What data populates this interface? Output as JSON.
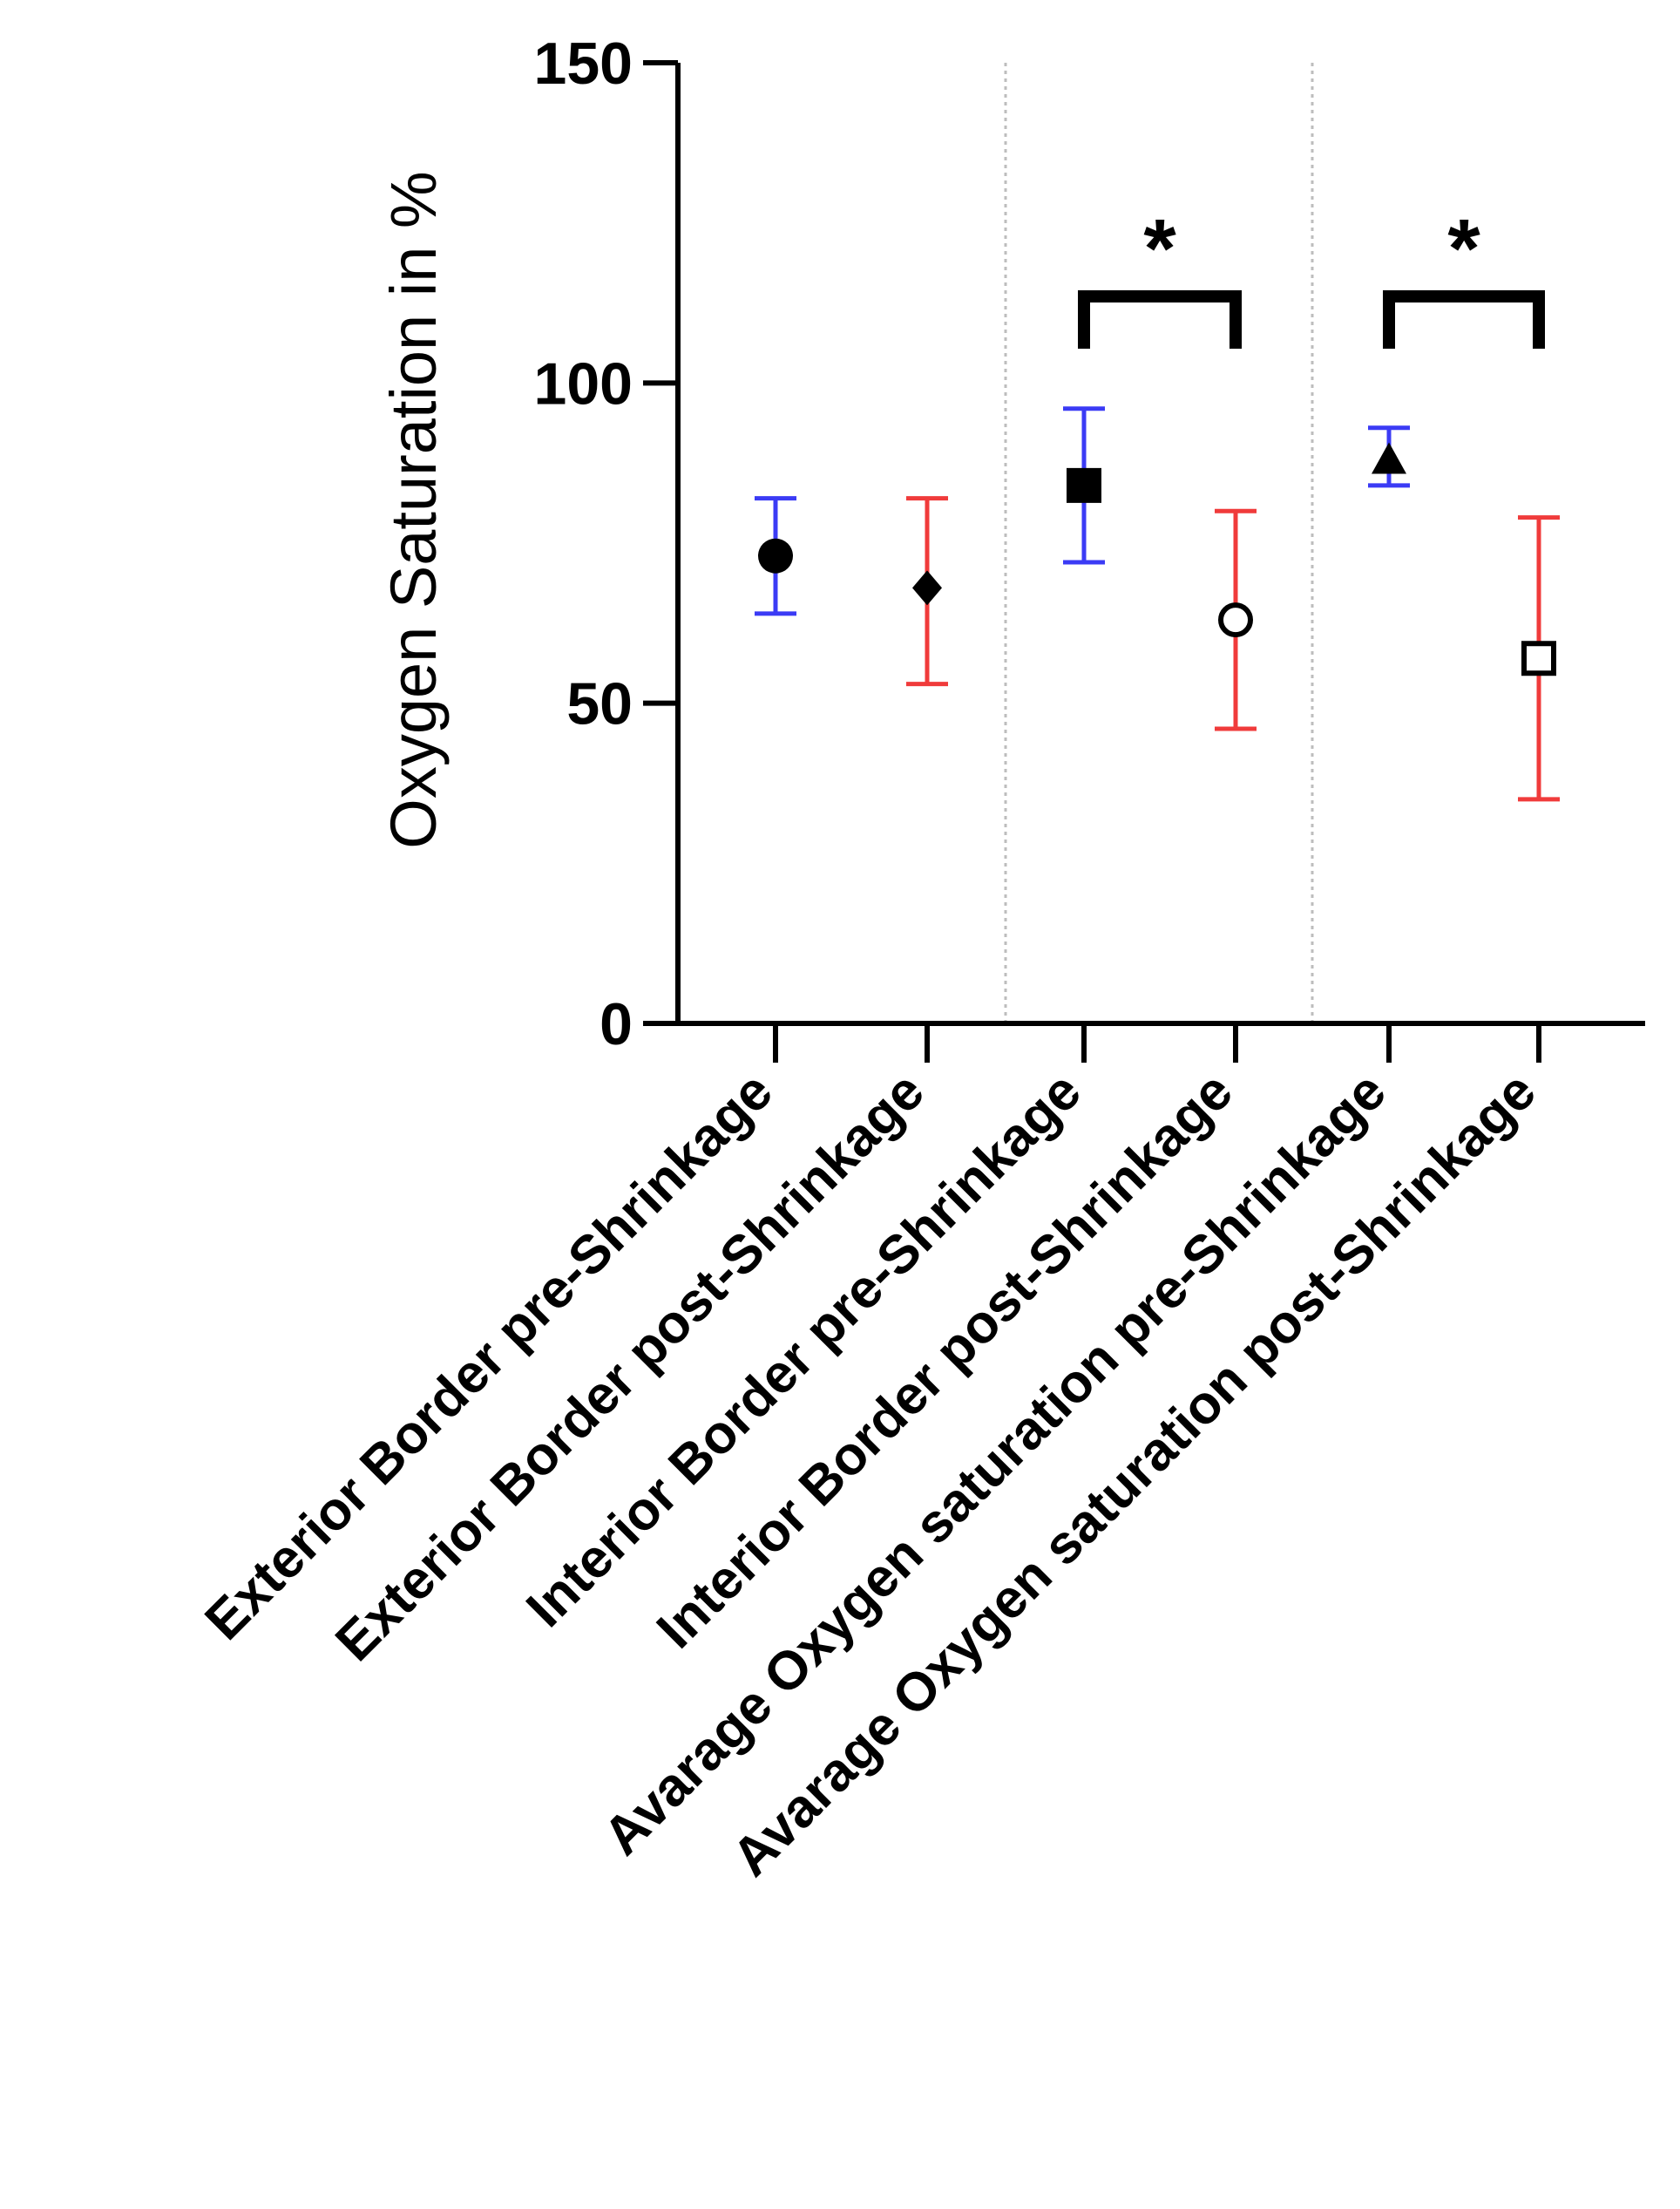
{
  "chart_data": {
    "type": "scatter",
    "title": "",
    "xlabel": "",
    "ylabel": "Oxygen Saturation in %",
    "ylim": [
      0,
      150
    ],
    "yticks": [
      0,
      50,
      100,
      150
    ],
    "grid": false,
    "legend": "none",
    "colors": {
      "axis": "#000000",
      "pre_error": "#3b3bf5",
      "post_error": "#f03b3b",
      "separator": "#bdbdbd",
      "marker": "#000000"
    },
    "categories": [
      "Exterior Border pre-Shrinkage",
      "Exterior Border post-Shrinkage",
      "Interior Border pre-Shrinkage",
      "Interior Border post-Shrinkage",
      "Avarage Oxygen saturation pre-Shrinkage",
      "Avarage Oxygen saturation post-Shrinkage"
    ],
    "points": [
      {
        "mean": 73,
        "lower": 64,
        "upper": 82,
        "marker": "filled-circle",
        "error_color": "pre"
      },
      {
        "mean": 68,
        "lower": 53,
        "upper": 82,
        "marker": "filled-diamond",
        "error_color": "post"
      },
      {
        "mean": 84,
        "lower": 72,
        "upper": 96,
        "marker": "filled-square",
        "error_color": "pre"
      },
      {
        "mean": 63,
        "lower": 46,
        "upper": 80,
        "marker": "open-circle",
        "error_color": "post"
      },
      {
        "mean": 88,
        "lower": 84,
        "upper": 93,
        "marker": "filled-triangle",
        "error_color": "pre"
      },
      {
        "mean": 57,
        "lower": 35,
        "upper": 79,
        "marker": "open-square",
        "error_color": "post"
      }
    ],
    "separators_after": [
      2,
      4
    ],
    "significance": [
      {
        "from": 2,
        "to": 3,
        "label": "*"
      },
      {
        "from": 4,
        "to": 5,
        "label": "*"
      }
    ]
  }
}
